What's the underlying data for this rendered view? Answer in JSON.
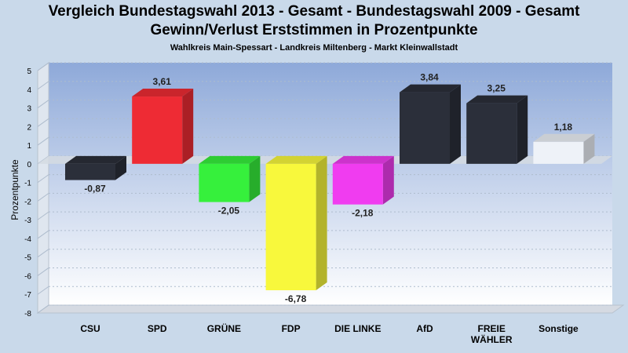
{
  "title_line1": "Vergleich Bundestagswahl 2013 - Gesamt - Bundestagswahl 2009 - Gesamt",
  "title_line2": "Gewinn/Verlust Erststimmen in Prozentpunkte",
  "subtitle": "Wahlkreis Main-Spessart - Landkreis Miltenberg - Markt Kleinwallstadt",
  "chart_data": {
    "type": "bar",
    "title": "Vergleich Bundestagswahl 2013 - Gesamt - Bundestagswahl 2009 - Gesamt",
    "subtitle": "Gewinn/Verlust Erststimmen in Prozentpunkte",
    "ylabel": "Prozentpunkte",
    "xlabel": "",
    "ylim": [
      -8,
      5
    ],
    "yticks": [
      5,
      4,
      3,
      2,
      1,
      0,
      -1,
      -2,
      -3,
      -4,
      -5,
      -6,
      -7,
      -8
    ],
    "categories": [
      "CSU",
      "SPD",
      "GRÜNE",
      "FDP",
      "DIE LINKE",
      "AfD",
      "FREIE WÄHLER",
      "Sonstige"
    ],
    "category_lines": [
      [
        "CSU"
      ],
      [
        "SPD"
      ],
      [
        "GRÜNE"
      ],
      [
        "FDP"
      ],
      [
        "DIE LINKE"
      ],
      [
        "AfD"
      ],
      [
        "FREIE",
        "WÄHLER"
      ],
      [
        "Sonstige"
      ]
    ],
    "values": [
      -0.87,
      3.61,
      -2.05,
      -6.78,
      -2.18,
      3.84,
      3.25,
      1.18
    ],
    "value_labels": [
      "-0,87",
      "3,61",
      "-2,05",
      "-6,78",
      "-2,18",
      "3,84",
      "3,25",
      "1,18"
    ],
    "colors": [
      "#2b2f3a",
      "#ee2b34",
      "#36f03c",
      "#f8f83c",
      "#f03cf0",
      "#2b2f3a",
      "#2b2f3a",
      "#eef2f8"
    ],
    "grid": true,
    "style": "3d-bar"
  }
}
